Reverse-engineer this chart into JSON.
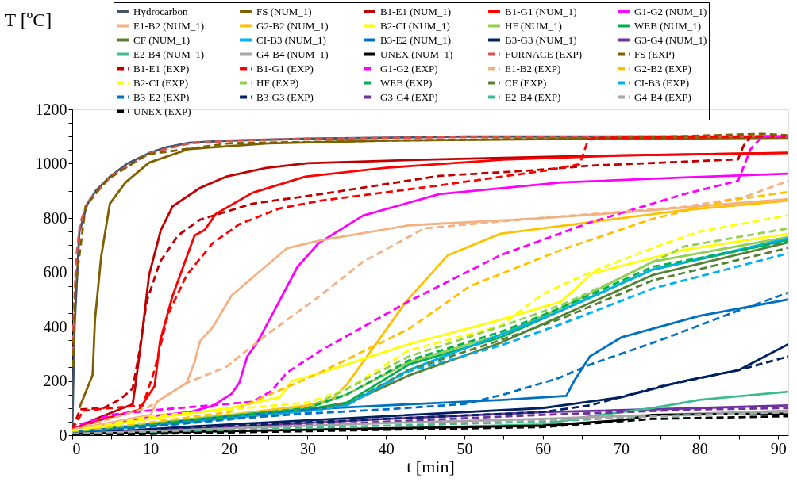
{
  "chart_data": {
    "type": "line",
    "xlabel": "t [min]",
    "ylabel": "T [ºC]",
    "xlim": [
      0,
      91.3
    ],
    "ylim": [
      0,
      1200
    ],
    "grid": false,
    "legend": "top",
    "xticks": [
      0,
      {
        "value": 5,
        "label": null
      },
      10,
      {
        "value": 15,
        "label": null
      },
      20,
      {
        "value": 25,
        "label": null
      },
      30,
      {
        "value": 35,
        "label": null
      },
      40,
      {
        "value": 45,
        "label": null
      },
      50,
      {
        "value": 55,
        "label": null
      },
      60,
      {
        "value": 65,
        "label": null
      },
      70,
      {
        "value": 75,
        "label": null
      },
      80,
      {
        "value": 85,
        "label": null
      },
      90
    ],
    "yticks": [
      0,
      {
        "value": 50,
        "label": null
      },
      {
        "value": 100,
        "label": null
      },
      {
        "value": 150,
        "label": null
      },
      200,
      {
        "value": 250,
        "label": null
      },
      {
        "value": 300,
        "label": null
      },
      {
        "value": 350,
        "label": null
      },
      400,
      {
        "value": 450,
        "label": null
      },
      {
        "value": 500,
        "label": null
      },
      {
        "value": 550,
        "label": null
      },
      600,
      {
        "value": 650,
        "label": null
      },
      {
        "value": 700,
        "label": null
      },
      {
        "value": 750,
        "label": null
      },
      800,
      {
        "value": 850,
        "label": null
      },
      {
        "value": 900,
        "label": null
      },
      {
        "value": 950,
        "label": null
      },
      1000,
      {
        "value": 1050,
        "label": null
      },
      {
        "value": 1100,
        "label": null
      },
      {
        "value": 1150,
        "label": null
      },
      1200
    ],
    "series": [
      {
        "name": "Hydrocarbon",
        "color": "#44546a",
        "line_style": "solid",
        "x": [
          0,
          0.3,
          0.9,
          1.9,
          3,
          4.8,
          7,
          9.8,
          12,
          14.9,
          20,
          30,
          50,
          91.3
        ],
        "values": [
          20,
          400,
          747,
          850,
          900,
          952,
          1000,
          1039,
          1060,
          1077,
          1085,
          1092,
          1100,
          1100
        ]
      },
      {
        "name": "FS (NUM_1)",
        "color": "#7f6000",
        "line_style": "solid",
        "x": [
          0.9,
          2.6,
          2.9,
          3.7,
          4.8,
          6.8,
          9.8,
          14.9,
          25,
          40,
          60,
          91.3
        ],
        "values": [
          100,
          222,
          426,
          660,
          853,
          931,
          1004,
          1054,
          1075,
          1085,
          1090,
          1095
        ]
      },
      {
        "name": "B1-E1 (NUM_1)",
        "color": "#c00000",
        "line_style": "solid",
        "x": [
          0,
          3,
          6,
          7.7,
          8,
          8.8,
          9.8,
          11.3,
          12.8,
          16.3,
          19.6,
          24.7,
          30,
          45,
          65,
          91.3
        ],
        "values": [
          20,
          60,
          95,
          114,
          172,
          347,
          590,
          756,
          843,
          911,
          952,
          984,
          1002,
          1015,
          1028,
          1040
        ]
      },
      {
        "name": "B1-G1 (NUM_1)",
        "color": "#ff0000",
        "line_style": "solid",
        "x": [
          0,
          4,
          8.5,
          10.5,
          11.2,
          12.8,
          15.6,
          16.9,
          18.3,
          23,
          29.7,
          40,
          55,
          70,
          91.3
        ],
        "values": [
          20,
          60,
          93,
          181,
          347,
          514,
          736,
          756,
          815,
          893,
          952,
          985,
          1015,
          1030,
          1040
        ]
      },
      {
        "name": "G1-G2 (NUM_1)",
        "color": "#ff00ff",
        "line_style": "solid",
        "x": [
          0,
          10,
          15,
          17.9,
          20.3,
          21.3,
          22.3,
          23.7,
          26.4,
          28.7,
          31.4,
          37.1,
          46.8,
          62.4,
          78,
          91.3
        ],
        "values": [
          10,
          70,
          85,
          108,
          152,
          193,
          289,
          347,
          493,
          619,
          707,
          809,
          888,
          931,
          949,
          963
        ]
      },
      {
        "name": "E1-B2 (NUM_1)",
        "color": "#f4b183",
        "line_style": "solid",
        "x": [
          0,
          10,
          10.8,
          14.6,
          15.6,
          16.3,
          17.9,
          20.3,
          23,
          27.4,
          31.7,
          42.9,
          58.4,
          70.2,
          91.3
        ],
        "values": [
          20,
          75,
          123,
          193,
          269,
          347,
          397,
          514,
          581,
          689,
          718,
          773,
          797,
          820,
          870
        ]
      },
      {
        "name": "G2-B2 (NUM_1)",
        "color": "#ffc000",
        "line_style": "solid",
        "x": [
          0,
          20,
          30,
          33,
          35.1,
          39,
          42.6,
          47.9,
          54.6,
          66.2,
          78,
          91.3
        ],
        "values": [
          10,
          75,
          110,
          130,
          190,
          347,
          493,
          663,
          742,
          785,
          829,
          864
        ]
      },
      {
        "name": "B2-CI (NUM_1)",
        "color": "#ffff00",
        "line_style": "solid",
        "x": [
          0,
          10,
          20,
          26.5,
          28,
          31.2,
          42.9,
          54.6,
          62.4,
          66.2,
          78,
          91.3
        ],
        "values": [
          15,
          60,
          100,
          140,
          200,
          225,
          335,
          425,
          493,
          595,
          683,
          742
        ]
      },
      {
        "name": "HF (NUM_1)",
        "color": "#92d050",
        "line_style": "solid",
        "x": [
          0,
          15,
          30,
          35,
          42.9,
          54.6,
          62.4,
          74,
          91.3
        ],
        "values": [
          10,
          60,
          100,
          150,
          269,
          370,
          470,
          639,
          730
        ]
      },
      {
        "name": "WEB (NUM_1)",
        "color": "#00b050",
        "line_style": "solid",
        "x": [
          0,
          15,
          30,
          35,
          42.9,
          54.6,
          62.4,
          74,
          91.3
        ],
        "values": [
          10,
          55,
          95,
          120,
          260,
          360,
          460,
          610,
          720
        ]
      },
      {
        "name": "CF (NUM_1)",
        "color": "#548235",
        "line_style": "solid",
        "x": [
          0,
          15,
          30,
          35,
          42.9,
          54.6,
          62.4,
          74,
          91.3
        ],
        "values": [
          10,
          50,
          90,
          115,
          220,
          340,
          440,
          590,
          710
        ]
      },
      {
        "name": "CI-B3 (NUM_1)",
        "color": "#00b0f0",
        "line_style": "solid",
        "x": [
          0,
          15,
          30,
          35,
          42.9,
          54.6,
          62.4,
          74,
          91.3
        ],
        "values": [
          10,
          50,
          90,
          110,
          240,
          370,
          460,
          610,
          725
        ]
      },
      {
        "name": "B3-E2 (NUM_1)",
        "color": "#0070c0",
        "line_style": "solid",
        "x": [
          0,
          20,
          30,
          40,
          55,
          63,
          64,
          66,
          70,
          80,
          91.3
        ],
        "values": [
          10,
          70,
          95,
          110,
          130,
          145,
          200,
          290,
          360,
          440,
          500
        ]
      },
      {
        "name": "B3-G3 (NUM_1)",
        "color": "#002060",
        "line_style": "solid",
        "x": [
          0,
          20,
          40,
          60,
          70,
          78,
          85,
          91.3
        ],
        "values": [
          5,
          40,
          70,
          100,
          140,
          200,
          240,
          335
        ]
      },
      {
        "name": "G3-G4 (NUM_1)",
        "color": "#7030a0",
        "line_style": "solid",
        "x": [
          0,
          20,
          40,
          60,
          80,
          91.3
        ],
        "values": [
          5,
          30,
          60,
          85,
          100,
          110
        ]
      },
      {
        "name": "E2-B4 (NUM_1)",
        "color": "#3cbc8d",
        "line_style": "solid",
        "x": [
          0,
          20,
          40,
          60,
          66,
          74,
          80,
          91.3
        ],
        "values": [
          5,
          15,
          25,
          40,
          70,
          100,
          130,
          160
        ]
      },
      {
        "name": "G4-B4 (NUM_1)",
        "color": "#a6a6a6",
        "line_style": "solid",
        "x": [
          0,
          20,
          40,
          60,
          74,
          91.3
        ],
        "values": [
          5,
          25,
          45,
          60,
          75,
          90
        ]
      },
      {
        "name": "UNEX (NUM_1)",
        "color": "#000000",
        "line_style": "solid",
        "x": [
          0,
          20,
          40,
          60,
          70,
          74,
          91.3
        ],
        "values": [
          5,
          15,
          25,
          35,
          55,
          75,
          80
        ]
      },
      {
        "name": "FURNACE (EXP)",
        "color": "#d9534f",
        "line_style": "dashed",
        "x": [
          0,
          0.5,
          1,
          2,
          5,
          10,
          15,
          20,
          30,
          50,
          70,
          91.3
        ],
        "values": [
          300,
          650,
          780,
          860,
          955,
          1040,
          1075,
          1085,
          1092,
          1098,
          1100,
          1100
        ]
      },
      {
        "name": "FS (EXP)",
        "color": "#7f6000",
        "line_style": "dashed",
        "x": [
          0.1,
          0.4,
          1.7,
          4.4,
          9.5,
          20,
          40,
          70,
          88,
          91.3
        ],
        "values": [
          251,
          543,
          843,
          940,
          1034,
          1075,
          1085,
          1095,
          1110,
          1105
        ]
      },
      {
        "name": "B1-E1 (EXP)",
        "color": "#c00000",
        "line_style": "dashed",
        "x": [
          0,
          1,
          4,
          6.2,
          7.7,
          8.5,
          9.5,
          11.2,
          13.5,
          16.3,
          23,
          31.7,
          46.8,
          58.4,
          66.2,
          84.9,
          85.6,
          86.5,
          91.3
        ],
        "values": [
          20,
          95,
          100,
          134,
          172,
          298,
          493,
          639,
          736,
          794,
          853,
          888,
          955,
          975,
          993,
          1016,
          1066,
          1101,
          1100
        ]
      },
      {
        "name": "B1-G1 (EXP)",
        "color": "#ff0000",
        "line_style": "dashed",
        "x": [
          0,
          1.4,
          5,
          9,
          10.5,
          12.2,
          14.6,
          17.9,
          21.3,
          26.4,
          31.7,
          46.8,
          60.4,
          64.7,
          65.8,
          66.6,
          91.3
        ],
        "values": [
          20,
          90,
          100,
          110,
          240,
          444,
          590,
          707,
          777,
          835,
          864,
          920,
          975,
          998,
          1089,
          1095,
          1100
        ]
      },
      {
        "name": "G1-G2 (EXP)",
        "color": "#ff00ff",
        "line_style": "dashed",
        "x": [
          0,
          1,
          5,
          9.5,
          23,
          25.4,
          27.4,
          31.7,
          42.9,
          54.6,
          66.2,
          78,
          84.9,
          86.5,
          88,
          91.3
        ],
        "values": [
          10,
          40,
          75,
          90,
          123,
          163,
          231,
          312,
          493,
          663,
          785,
          888,
          937,
          1054,
          1101,
          1100
        ]
      },
      {
        "name": "E1-B2 (EXP)",
        "color": "#f4b183",
        "line_style": "dashed",
        "x": [
          0,
          9.5,
          14.6,
          19.6,
          24.7,
          31.2,
          37.1,
          44.9,
          58.4,
          78,
          85.6,
          91.3
        ],
        "values": [
          20,
          100,
          193,
          251,
          368,
          505,
          639,
          762,
          797,
          841,
          876,
          937
        ]
      },
      {
        "name": "G2-B2 (EXP)",
        "color": "#ffc000",
        "line_style": "dashed",
        "x": [
          0,
          20,
          31.2,
          42.9,
          50.7,
          62.4,
          74,
          83.7,
          91.3
        ],
        "values": [
          10,
          85,
          225,
          391,
          549,
          683,
          797,
          864,
          896
        ]
      },
      {
        "name": "B2-CI (EXP)",
        "color": "#ffff00",
        "line_style": "dashed",
        "x": [
          0,
          10,
          30,
          35,
          42.9,
          54.6,
          60,
          66,
          75,
          80,
          91.3
        ],
        "values": [
          15,
          70,
          120,
          170,
          312,
          403,
          520,
          600,
          700,
          750,
          810
        ]
      },
      {
        "name": "HF (EXP)",
        "color": "#92d050",
        "line_style": "dashed",
        "x": [
          0,
          15,
          30,
          35,
          42.9,
          54.6,
          62.4,
          70,
          78,
          91.3
        ],
        "values": [
          10,
          55,
          100,
          170,
          290,
          400,
          480,
          580,
          695,
          762
        ]
      },
      {
        "name": "WEB (EXP)",
        "color": "#00b050",
        "line_style": "dashed",
        "x": [
          0,
          15,
          30,
          35,
          42.9,
          54.6,
          62.4,
          74,
          91.3
        ],
        "values": [
          5,
          55,
          100,
          150,
          275,
          380,
          470,
          620,
          715
        ]
      },
      {
        "name": "CF (EXP)",
        "color": "#548235",
        "line_style": "dashed",
        "x": [
          0,
          15,
          30,
          35,
          42.9,
          54.6,
          62.4,
          74,
          91.3
        ],
        "values": [
          5,
          45,
          85,
          115,
          240,
          350,
          430,
          570,
          690
        ]
      },
      {
        "name": "CI-B3 (EXP)",
        "color": "#00b0f0",
        "line_style": "dashed",
        "x": [
          0,
          15,
          30,
          35,
          42.9,
          54.6,
          62.4,
          66,
          74,
          91.3
        ],
        "values": [
          5,
          45,
          85,
          110,
          235,
          330,
          410,
          450,
          540,
          670
        ]
      },
      {
        "name": "B3-E2 (EXP)",
        "color": "#0070c0",
        "line_style": "dashed",
        "x": [
          0,
          20,
          30,
          40,
          50,
          55,
          62,
          66,
          75,
          85,
          91.3
        ],
        "values": [
          5,
          60,
          80,
          95,
          115,
          150,
          210,
          260,
          350,
          460,
          525
        ]
      },
      {
        "name": "B3-G3 (EXP)",
        "color": "#002060",
        "line_style": "dashed",
        "x": [
          0,
          20,
          40,
          60,
          66,
          75,
          85,
          91.3
        ],
        "values": [
          5,
          35,
          60,
          85,
          110,
          180,
          240,
          290
        ]
      },
      {
        "name": "G3-G4 (EXP)",
        "color": "#7030a0",
        "line_style": "dashed",
        "x": [
          0,
          20,
          40,
          60,
          80,
          91.3
        ],
        "values": [
          5,
          25,
          50,
          75,
          95,
          100
        ]
      },
      {
        "name": "E2-B4 (EXP)",
        "color": "#3cbc8d",
        "line_style": "dashed",
        "x": [
          0,
          20,
          40,
          60,
          74,
          91.3
        ],
        "values": [
          5,
          20,
          35,
          50,
          70,
          85
        ]
      },
      {
        "name": "G4-B4 (EXP)",
        "color": "#a6a6a6",
        "line_style": "dashed",
        "x": [
          0,
          20,
          40,
          60,
          74,
          91.3
        ],
        "values": [
          5,
          25,
          45,
          55,
          70,
          85
        ]
      },
      {
        "name": "UNEX (EXP)",
        "color": "#000000",
        "line_style": "dashed",
        "x": [
          0,
          20,
          40,
          60,
          74,
          91.3
        ],
        "values": [
          0,
          10,
          20,
          30,
          60,
          70
        ]
      }
    ]
  }
}
